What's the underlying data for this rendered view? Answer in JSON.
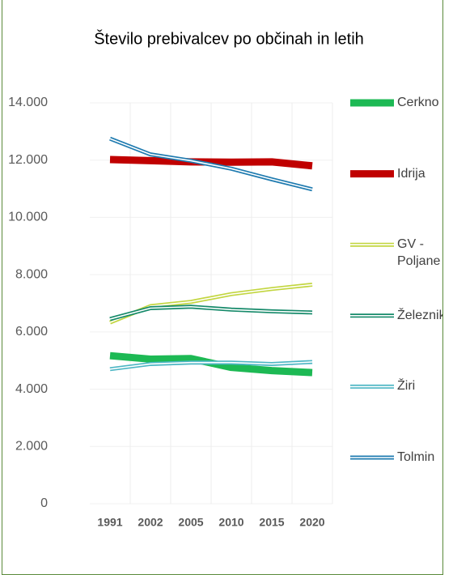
{
  "chart_data": {
    "type": "line",
    "title": "Število prebivalcev po občinah in letih",
    "categories": [
      "1991",
      "2002",
      "2005",
      "2010",
      "2015",
      "2020"
    ],
    "series": [
      {
        "name": "Cerkno",
        "color": "#1db954",
        "style": "thick",
        "values": [
          5170,
          5050,
          5070,
          4760,
          4650,
          4580
        ]
      },
      {
        "name": "Idrija",
        "color": "#c00000",
        "style": "thick",
        "values": [
          12020,
          11980,
          11940,
          11930,
          11940,
          11800
        ]
      },
      {
        "name": "GV - Poljane",
        "color": "#c3d641",
        "style": "double",
        "values": [
          6330,
          6900,
          7050,
          7320,
          7500,
          7650
        ]
      },
      {
        "name": "Železniki",
        "color": "#168a6a",
        "style": "double",
        "values": [
          6450,
          6830,
          6880,
          6780,
          6720,
          6680
        ]
      },
      {
        "name": "Žiri",
        "color": "#4db6c4",
        "style": "double",
        "values": [
          4700,
          4880,
          4930,
          4930,
          4880,
          4950
        ]
      },
      {
        "name": "Tolmin",
        "color": "#1f7bb0",
        "style": "double",
        "values": [
          12750,
          12200,
          11980,
          11700,
          11330,
          10980
        ]
      }
    ],
    "ylim": [
      0,
      14000
    ],
    "yticks": [
      {
        "value": 0,
        "label": "0"
      },
      {
        "value": 2000,
        "label": "2.000"
      },
      {
        "value": 4000,
        "label": "4.000"
      },
      {
        "value": 6000,
        "label": "6.000"
      },
      {
        "value": 8000,
        "label": "8.000"
      },
      {
        "value": 10000,
        "label": "10.000"
      },
      {
        "value": 12000,
        "label": "12.000"
      },
      {
        "value": 14000,
        "label": "14.000"
      }
    ],
    "grid": true,
    "legend": "right"
  }
}
